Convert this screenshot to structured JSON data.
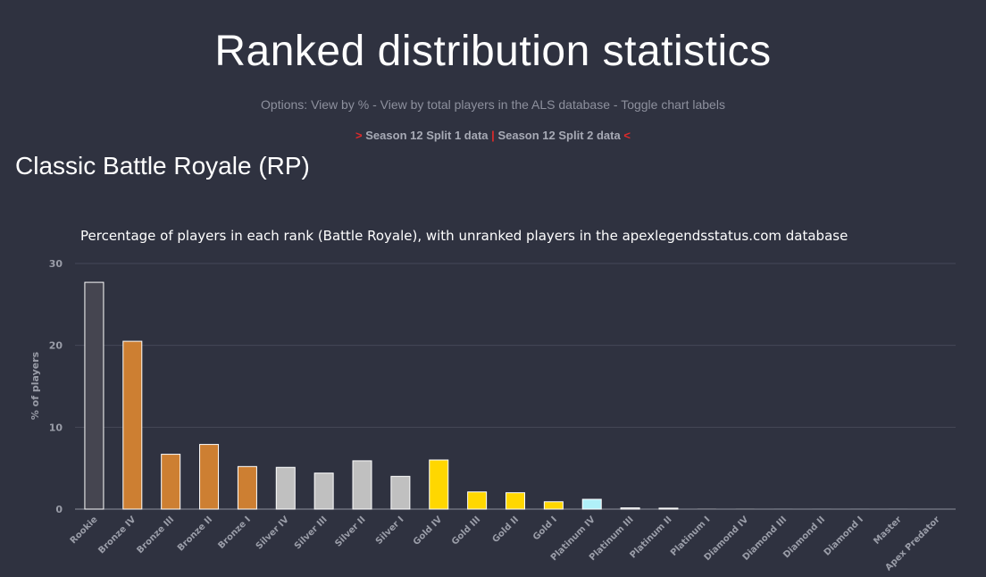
{
  "page": {
    "title": "Ranked distribution statistics",
    "options": {
      "prefix": "Options:",
      "view_percent": "View by %",
      "separator": "-",
      "view_total": "View by total players in the ALS database",
      "toggle_labels": "Toggle chart labels"
    },
    "season_links": {
      "left_marker": ">",
      "split1": "Season 12 Split 1 data",
      "divider": "|",
      "split2": "Season 12 Split 2 data",
      "right_marker": "<"
    },
    "section_title": "Classic Battle Royale (RP)"
  },
  "colors": {
    "background": "#2f3240",
    "grid": "#454857",
    "rookie": "#454550",
    "bronze": "#cd7f32",
    "silver": "#c0c0c0",
    "gold": "#ffd700",
    "platinum": "#b0f0f8",
    "marker_red": "#e02a2a"
  },
  "chart_data": {
    "type": "bar",
    "title": "Percentage of players in each rank (Battle Royale), with unranked players in the apexlegendsstatus.com database",
    "xlabel": "",
    "ylabel": "% of players",
    "ylim": [
      0,
      30
    ],
    "yticks": [
      0,
      10,
      20,
      30
    ],
    "grid": true,
    "categories": [
      "Rookie",
      "Bronze IV",
      "Bronze III",
      "Bronze II",
      "Bronze I",
      "Silver IV",
      "Silver III",
      "Silver II",
      "Silver I",
      "Gold IV",
      "Gold III",
      "Gold II",
      "Gold I",
      "Platinum IV",
      "Platinum III",
      "Platinum II",
      "Platinum I",
      "Diamond IV",
      "Diamond III",
      "Diamond II",
      "Diamond I",
      "Master",
      "Apex Predator"
    ],
    "values": [
      27.7,
      20.5,
      6.7,
      7.9,
      5.2,
      5.1,
      4.4,
      5.9,
      4.0,
      6.0,
      2.1,
      2.0,
      0.9,
      1.2,
      0.15,
      0.12,
      0.03,
      0.02,
      0.01,
      0.01,
      0.01,
      0.01,
      0.0
    ],
    "bar_colors": [
      "rookie",
      "bronze",
      "bronze",
      "bronze",
      "bronze",
      "silver",
      "silver",
      "silver",
      "silver",
      "gold",
      "gold",
      "gold",
      "gold",
      "platinum",
      "silver",
      "silver",
      "silver",
      "silver",
      "silver",
      "silver",
      "silver",
      "silver",
      "silver"
    ]
  }
}
